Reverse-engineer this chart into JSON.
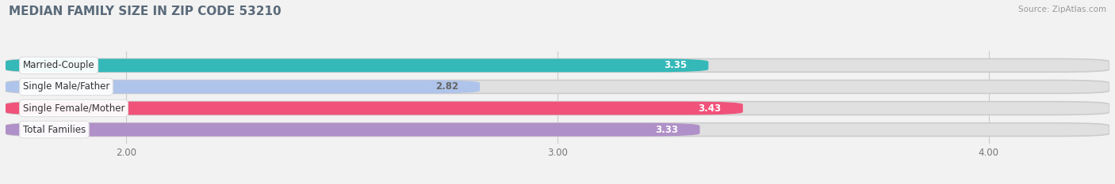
{
  "title": "MEDIAN FAMILY SIZE IN ZIP CODE 53210",
  "source": "Source: ZipAtlas.com",
  "categories": [
    "Married-Couple",
    "Single Male/Father",
    "Single Female/Mother",
    "Total Families"
  ],
  "values": [
    3.35,
    2.82,
    3.43,
    3.33
  ],
  "bar_colors": [
    "#35b8b8",
    "#afc4ea",
    "#f0527a",
    "#b090c8"
  ],
  "label_colors": [
    "#555555",
    "#555555",
    "#555555",
    "#555555"
  ],
  "value_colors": [
    "#ffffff",
    "#666666",
    "#ffffff",
    "#ffffff"
  ],
  "xlim_min": 1.72,
  "xlim_max": 4.28,
  "xticks": [
    2.0,
    3.0,
    4.0
  ],
  "xtick_labels": [
    "2.00",
    "3.00",
    "4.00"
  ],
  "title_color": "#5a6a7a",
  "title_fontsize": 11,
  "bar_height": 0.62,
  "background_color": "#f2f2f2",
  "bar_bg_color": "#e0e0e0",
  "bar_bg_darker": "#d0d0d0"
}
